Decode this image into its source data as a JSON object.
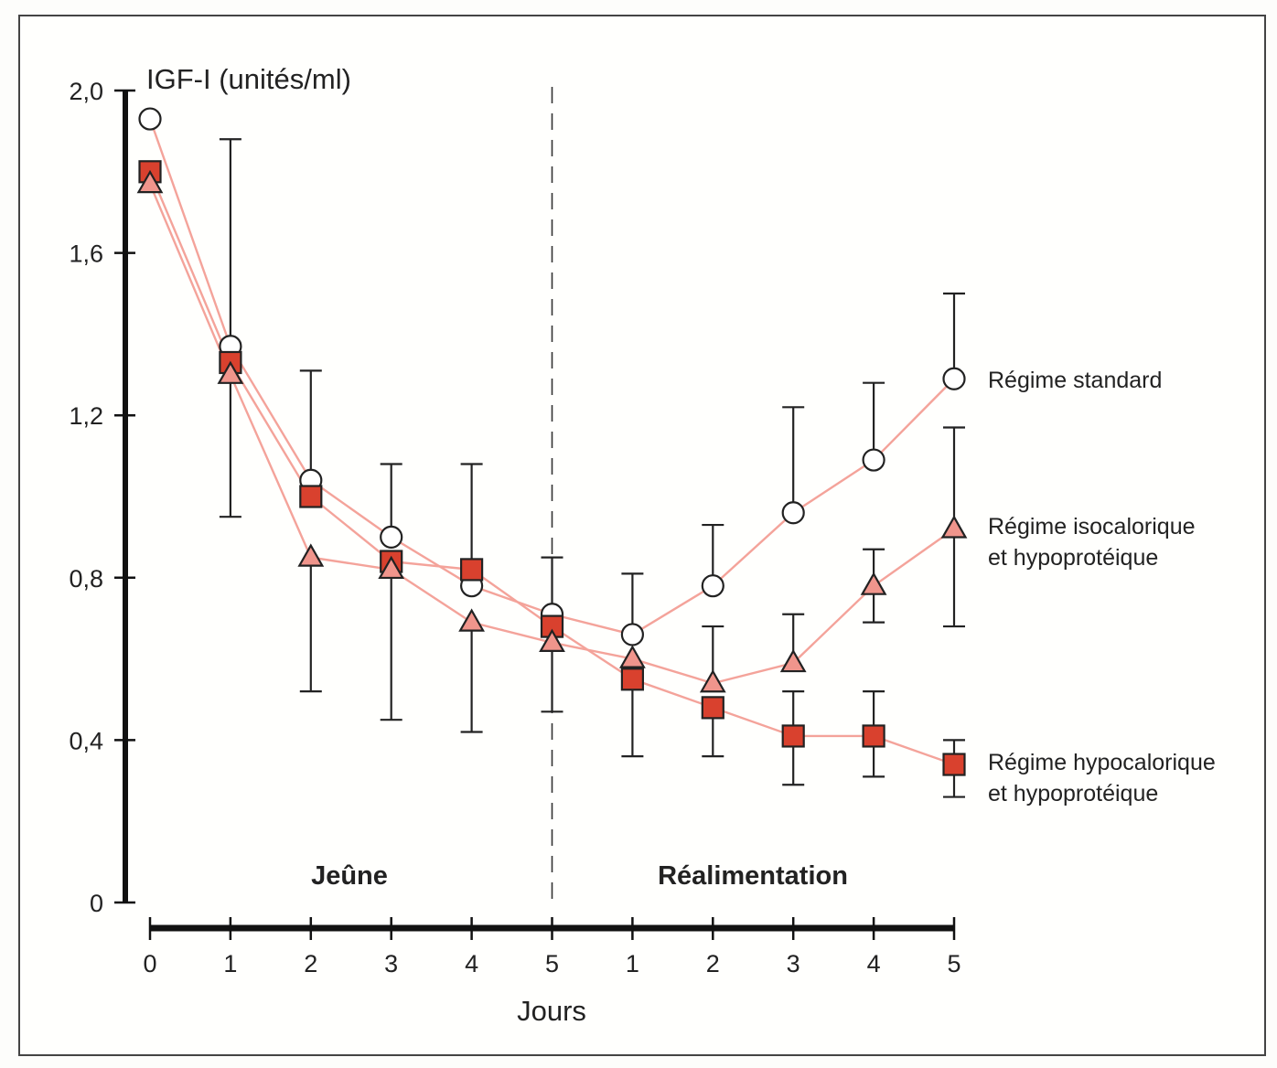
{
  "chart_data": {
    "type": "line",
    "title": "",
    "ylabel": "IGF-I (unités/ml)",
    "xlabel": "Jours",
    "ylim": [
      0,
      2.0
    ],
    "yticks": [
      0,
      0.4,
      0.8,
      1.2,
      1.6,
      2.0
    ],
    "ytick_labels": [
      "0",
      "0,4",
      "0,8",
      "1,2",
      "1,6",
      "2,0"
    ],
    "xtick_labels": [
      "0",
      "1",
      "2",
      "3",
      "4",
      "5",
      "1",
      "2",
      "3",
      "4",
      "5"
    ],
    "phases": [
      {
        "label": "Jeûne",
        "from_index": 0,
        "to_index": 5
      },
      {
        "label": "Réalimentation",
        "from_index": 5,
        "to_index": 10
      }
    ],
    "phase_divider_index": 5,
    "grid": false,
    "legend_position": "right",
    "series": [
      {
        "name": "Régime standard",
        "marker": "circle",
        "values": [
          1.93,
          1.37,
          1.04,
          0.9,
          0.78,
          0.71,
          0.66,
          0.78,
          0.96,
          1.09,
          1.29
        ],
        "error_upper": [
          null,
          1.88,
          1.31,
          1.08,
          1.08,
          0.85,
          0.81,
          0.93,
          1.22,
          1.28,
          1.5
        ],
        "error_lower": [
          null,
          null,
          null,
          null,
          null,
          null,
          null,
          null,
          null,
          null,
          null
        ]
      },
      {
        "name": "Régime isocalorique et hypoprotéique",
        "marker": "triangle",
        "values": [
          1.77,
          1.3,
          0.85,
          0.82,
          0.69,
          0.64,
          0.6,
          0.54,
          0.59,
          0.78,
          0.92
        ],
        "error_upper": [
          null,
          null,
          null,
          null,
          null,
          null,
          null,
          0.68,
          0.71,
          0.87,
          1.17
        ],
        "error_lower": [
          null,
          0.95,
          0.52,
          0.45,
          0.42,
          0.47,
          null,
          null,
          null,
          0.69,
          0.68
        ]
      },
      {
        "name": "Régime hypocalorique et hypoprotéique",
        "marker": "square",
        "values": [
          1.8,
          1.33,
          1.0,
          0.84,
          0.82,
          0.68,
          0.55,
          0.48,
          0.41,
          0.41,
          0.34
        ],
        "error_upper": [
          null,
          null,
          null,
          null,
          null,
          null,
          null,
          null,
          0.52,
          0.52,
          0.4
        ],
        "error_lower": [
          null,
          null,
          null,
          null,
          null,
          null,
          0.36,
          0.36,
          0.29,
          0.31,
          0.26
        ]
      }
    ],
    "legend": [
      {
        "lines": [
          "Régime standard"
        ]
      },
      {
        "lines": [
          "Régime isocalorique",
          "et hypoprotéique"
        ]
      },
      {
        "lines": [
          "Régime hypocalorique",
          "et hypoprotéique"
        ]
      }
    ],
    "colors": {
      "line": "#f4a39a",
      "square_fill": "#d9412e",
      "triangle_fill": "#f0958c",
      "circle_fill": "#ffffff",
      "stroke": "#222222"
    }
  }
}
